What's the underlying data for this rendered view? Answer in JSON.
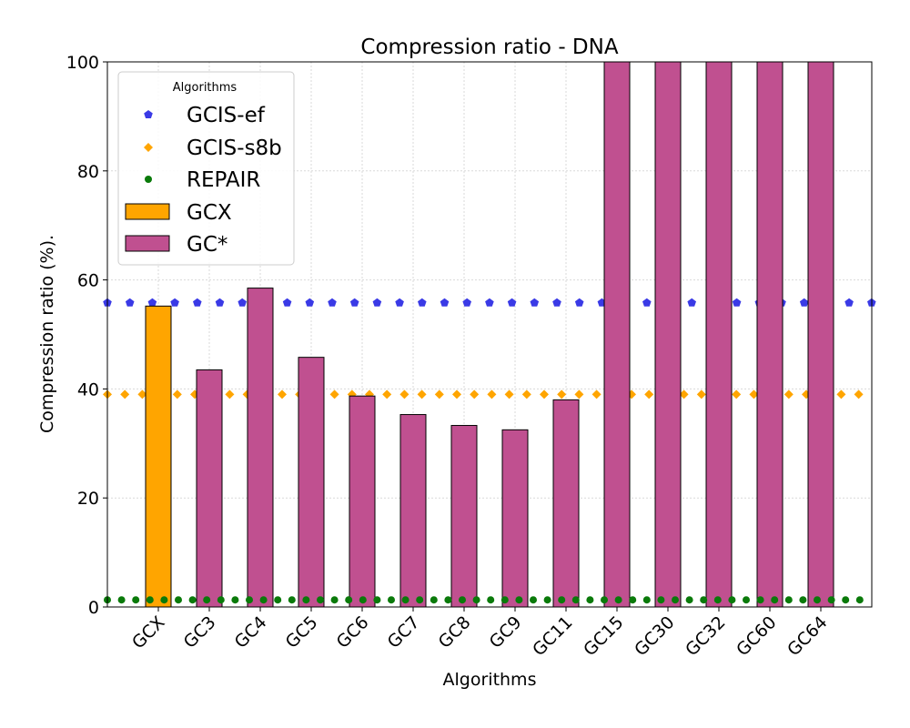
{
  "chart_data": {
    "type": "bar",
    "title": "Compression ratio -  DNA",
    "xlabel": "Algorithms",
    "ylabel": "Compression ratio (%).",
    "ylim": [
      0,
      100
    ],
    "yticks": [
      0,
      20,
      40,
      60,
      80,
      100
    ],
    "grid": true,
    "categories": [
      "GCX",
      "GC3",
      "GC4",
      "GC5",
      "GC6",
      "GC7",
      "GC8",
      "GC9",
      "GC11",
      "GC15",
      "GC30",
      "GC32",
      "GC60",
      "GC64"
    ],
    "bar_series": [
      {
        "name": "GCX",
        "color": "#ffa500",
        "values": [
          55.2,
          null,
          null,
          null,
          null,
          null,
          null,
          null,
          null,
          null,
          null,
          null,
          null,
          null
        ]
      },
      {
        "name": "GC*",
        "color": "#c05090",
        "values": [
          null,
          43.5,
          58.5,
          45.8,
          38.7,
          35.3,
          33.3,
          32.5,
          38.0,
          100,
          100,
          100,
          100,
          100
        ]
      }
    ],
    "reference_series": [
      {
        "name": "GCIS-ef",
        "color": "#3a3ae6",
        "marker": "pentagon",
        "value": 55.8
      },
      {
        "name": "GCIS-s8b",
        "color": "#ffa500",
        "marker": "diamond",
        "value": 39.0
      },
      {
        "name": "REPAIR",
        "color": "#0a7a0a",
        "marker": "circle",
        "value": 1.3
      }
    ],
    "legend": {
      "title": "Algorithms",
      "placement": "top-left",
      "entries": [
        "GCIS-ef",
        "GCIS-s8b",
        "REPAIR",
        "GCX",
        "GC*"
      ]
    }
  }
}
